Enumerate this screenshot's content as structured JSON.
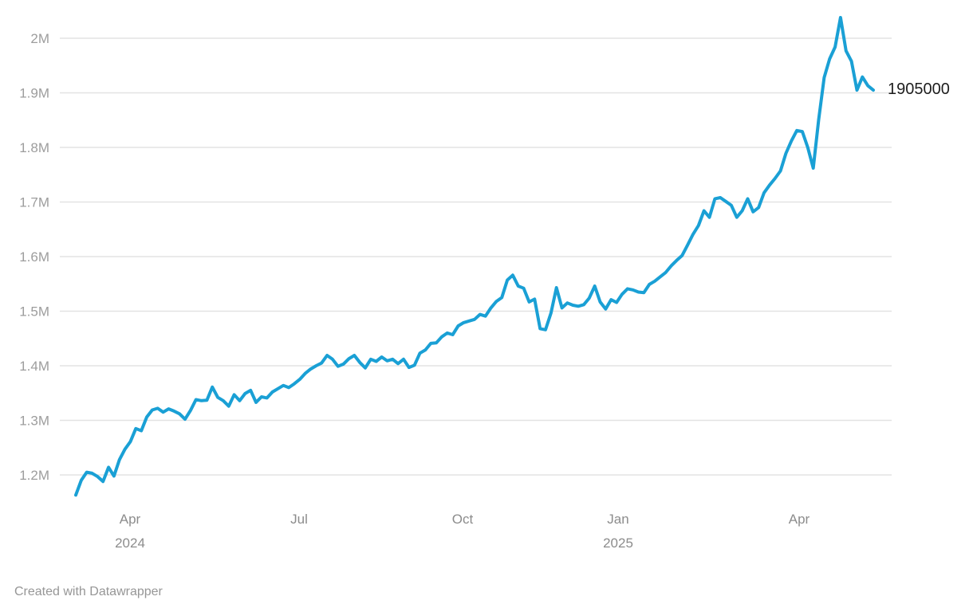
{
  "page": {
    "background": "#ffffff"
  },
  "colors": {
    "line": "#1aa0d5",
    "gridline": "#e3e3e3",
    "y_tick_text": "#9d9d9d",
    "x_tick_text": "#8c8c8c",
    "end_label_text": "#1d1d1d",
    "credit_text": "#969696"
  },
  "footer": {
    "credit": "Created with Datawrapper"
  },
  "chart_data": {
    "type": "line",
    "title": "",
    "xlabel": "",
    "ylabel": "",
    "grid": "horizontal",
    "legend": "none",
    "series_name": "value",
    "x_start_date": "2024-03-03",
    "x_end_date": "2025-05-11",
    "y_range": [
      1140000,
      2060000
    ],
    "y_ticks": [
      {
        "label": "2M",
        "value": 2000000
      },
      {
        "label": "1.9M",
        "value": 1900000
      },
      {
        "label": "1.8M",
        "value": 1800000
      },
      {
        "label": "1.7M",
        "value": 1700000
      },
      {
        "label": "1.6M",
        "value": 1600000
      },
      {
        "label": "1.5M",
        "value": 1500000
      },
      {
        "label": "1.4M",
        "value": 1400000
      },
      {
        "label": "1.3M",
        "value": 1300000
      },
      {
        "label": "1.2M",
        "value": 1200000
      }
    ],
    "x_ticks": [
      {
        "label": "Apr",
        "sublabel": "2024",
        "pos": 0.068
      },
      {
        "label": "Jul",
        "sublabel": "",
        "pos": 0.28
      },
      {
        "label": "Oct",
        "sublabel": "",
        "pos": 0.485
      },
      {
        "label": "Jan",
        "sublabel": "2025",
        "pos": 0.68
      },
      {
        "label": "Apr",
        "sublabel": "",
        "pos": 0.907
      }
    ],
    "end_label": "1905000",
    "values": [
      1163000,
      1190000,
      1205000,
      1203000,
      1197000,
      1188000,
      1214000,
      1198000,
      1228000,
      1247000,
      1261000,
      1285000,
      1281000,
      1306000,
      1319000,
      1322000,
      1315000,
      1321000,
      1317000,
      1312000,
      1302000,
      1318000,
      1338000,
      1336000,
      1337000,
      1361000,
      1342000,
      1336000,
      1326000,
      1347000,
      1336000,
      1349000,
      1355000,
      1333000,
      1343000,
      1341000,
      1352000,
      1358000,
      1364000,
      1360000,
      1367000,
      1375000,
      1386000,
      1394000,
      1400000,
      1405000,
      1419000,
      1412000,
      1399000,
      1403000,
      1413000,
      1419000,
      1406000,
      1396000,
      1412000,
      1408000,
      1416000,
      1409000,
      1412000,
      1404000,
      1412000,
      1397000,
      1401000,
      1423000,
      1429000,
      1441000,
      1442000,
      1453000,
      1460000,
      1457000,
      1473000,
      1479000,
      1482000,
      1485000,
      1494000,
      1491000,
      1506000,
      1518000,
      1525000,
      1557000,
      1566000,
      1546000,
      1542000,
      1517000,
      1522000,
      1468000,
      1466000,
      1497000,
      1543000,
      1506000,
      1515000,
      1511000,
      1509000,
      1512000,
      1524000,
      1546000,
      1517000,
      1504000,
      1521000,
      1516000,
      1531000,
      1541000,
      1539000,
      1535000,
      1534000,
      1549000,
      1555000,
      1563000,
      1571000,
      1583000,
      1593000,
      1602000,
      1621000,
      1641000,
      1657000,
      1684000,
      1672000,
      1706000,
      1708000,
      1701000,
      1694000,
      1672000,
      1684000,
      1706000,
      1682000,
      1690000,
      1717000,
      1731000,
      1743000,
      1757000,
      1789000,
      1812000,
      1831000,
      1829000,
      1800000,
      1762000,
      1851000,
      1928000,
      1962000,
      1984000,
      2038000,
      1977000,
      1958000,
      1905000,
      1929000,
      1913000,
      1905000
    ]
  }
}
